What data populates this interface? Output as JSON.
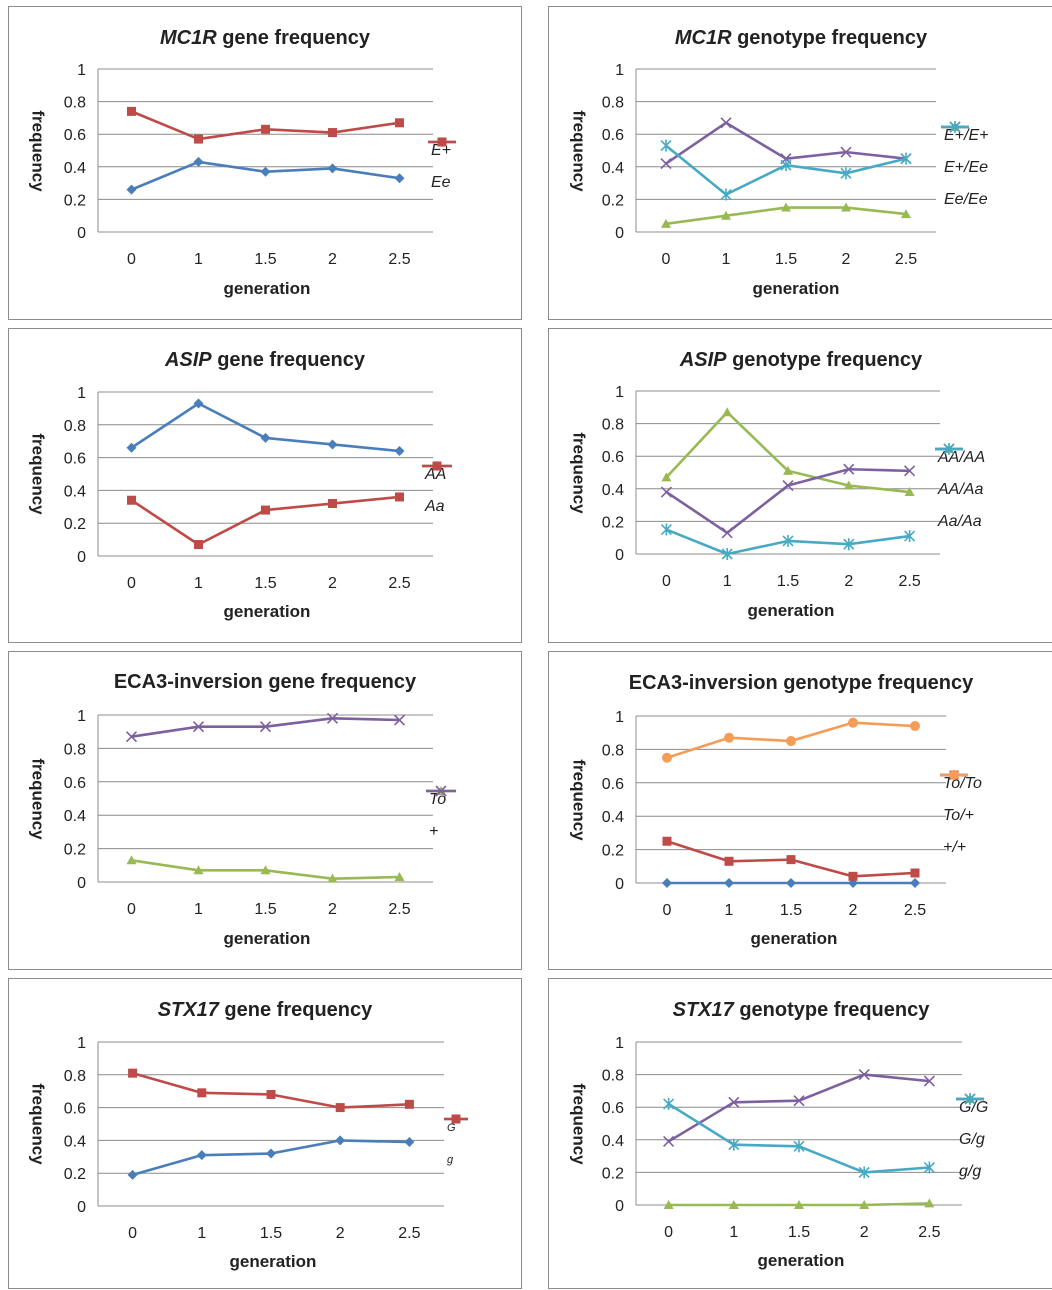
{
  "chart_data": [
    {
      "type": "line",
      "title_italic": "MC1R",
      "title_rest": " gene frequency",
      "xlabel": "generation",
      "ylabel": "frequency",
      "ylim": [
        0,
        1
      ],
      "yticks": [
        "0",
        "0.2",
        "0.4",
        "0.6",
        "0.8",
        "1"
      ],
      "categories": [
        "0",
        "1",
        "1.5",
        "2",
        "2.5"
      ],
      "legend_position": "right",
      "series": [
        {
          "name": "E+",
          "color": "#4a7ebb",
          "marker": "diamond",
          "values": [
            0.26,
            0.43,
            0.37,
            0.39,
            0.33
          ]
        },
        {
          "name": "Ee",
          "color": "#be4b48",
          "marker": "square",
          "values": [
            0.74,
            0.57,
            0.63,
            0.61,
            0.67
          ]
        }
      ]
    },
    {
      "type": "line",
      "title_italic": "MC1R",
      "title_rest": " genotype frequency",
      "xlabel": "generation",
      "ylabel": "frequency",
      "ylim": [
        0,
        1
      ],
      "yticks": [
        "0",
        "0.2",
        "0.4",
        "0.6",
        "0.8",
        "1"
      ],
      "categories": [
        "0",
        "1",
        "1.5",
        "2",
        "2.5"
      ],
      "legend_position": "right",
      "series": [
        {
          "name": "E+/E+",
          "color": "#98b954",
          "marker": "triangle",
          "values": [
            0.05,
            0.1,
            0.15,
            0.15,
            0.11
          ]
        },
        {
          "name": "E+/Ee",
          "color": "#7d60a0",
          "marker": "x",
          "values": [
            0.42,
            0.67,
            0.45,
            0.49,
            0.45
          ]
        },
        {
          "name": "Ee/Ee",
          "color": "#46aac5",
          "marker": "star",
          "values": [
            0.53,
            0.23,
            0.41,
            0.36,
            0.45
          ]
        }
      ]
    },
    {
      "type": "line",
      "title_italic": "ASIP",
      "title_rest": " gene frequency",
      "xlabel": "generation",
      "ylabel": "frequency",
      "ylim": [
        0,
        1
      ],
      "yticks": [
        "0",
        "0.2",
        "0.4",
        "0.6",
        "0.8",
        "1"
      ],
      "categories": [
        "0",
        "1",
        "1.5",
        "2",
        "2.5"
      ],
      "legend_position": "right",
      "series": [
        {
          "name": "AA",
          "color": "#4a7ebb",
          "marker": "diamond",
          "values": [
            0.66,
            0.93,
            0.72,
            0.68,
            0.64
          ]
        },
        {
          "name": "Aa",
          "color": "#be4b48",
          "marker": "square",
          "values": [
            0.34,
            0.07,
            0.28,
            0.32,
            0.36
          ]
        }
      ]
    },
    {
      "type": "line",
      "title_italic": "ASIP",
      "title_rest": " genotype frequency",
      "xlabel": "generation",
      "ylabel": "frequency",
      "ylim": [
        0,
        1
      ],
      "yticks": [
        "0",
        "0.2",
        "0.4",
        "0.6",
        "0.8",
        "1"
      ],
      "categories": [
        "0",
        "1",
        "1.5",
        "2",
        "2.5"
      ],
      "legend_position": "right",
      "series": [
        {
          "name": "AA/AA",
          "color": "#98b954",
          "marker": "triangle",
          "values": [
            0.47,
            0.87,
            0.51,
            0.42,
            0.38
          ]
        },
        {
          "name": "AA/Aa",
          "color": "#7d60a0",
          "marker": "x",
          "values": [
            0.38,
            0.13,
            0.42,
            0.52,
            0.51
          ]
        },
        {
          "name": "Aa/Aa",
          "color": "#46aac5",
          "marker": "star",
          "values": [
            0.15,
            0.0,
            0.08,
            0.06,
            0.11
          ]
        }
      ]
    },
    {
      "type": "line",
      "title_italic": "",
      "title_rest": "ECA3-inversion gene frequency",
      "xlabel": "generation",
      "ylabel": "frequency",
      "ylim": [
        0,
        1
      ],
      "yticks": [
        "0",
        "0.2",
        "0.4",
        "0.6",
        "0.8",
        "1"
      ],
      "categories": [
        "0",
        "1",
        "1.5",
        "2",
        "2.5"
      ],
      "legend_position": "right",
      "series": [
        {
          "name": "To",
          "color": "#98b954",
          "marker": "triangle",
          "values": [
            0.13,
            0.07,
            0.07,
            0.02,
            0.03
          ]
        },
        {
          "name": "+",
          "color": "#7d60a0",
          "marker": "x",
          "values": [
            0.87,
            0.93,
            0.93,
            0.98,
            0.97
          ]
        }
      ]
    },
    {
      "type": "line",
      "title_italic": "",
      "title_rest": "ECA3-inversion genotype frequency",
      "xlabel": "generation",
      "ylabel": "frequency",
      "ylim": [
        0,
        1
      ],
      "yticks": [
        "0",
        "0.2",
        "0.4",
        "0.6",
        "0.8",
        "1"
      ],
      "categories": [
        "0",
        "1",
        "1.5",
        "2",
        "2.5"
      ],
      "legend_position": "right",
      "series": [
        {
          "name": "To/To",
          "color": "#4a7ebb",
          "marker": "diamond",
          "values": [
            0.0,
            0.0,
            0.0,
            0.0,
            0.0
          ]
        },
        {
          "name": "To/+",
          "color": "#be4b48",
          "marker": "square",
          "values": [
            0.25,
            0.13,
            0.14,
            0.04,
            0.06
          ]
        },
        {
          "name": "+/+",
          "color": "#f59d56",
          "marker": "circle",
          "values": [
            0.75,
            0.87,
            0.85,
            0.96,
            0.94
          ]
        }
      ]
    },
    {
      "type": "line",
      "title_italic": "STX17",
      "title_rest": " gene frequency",
      "xlabel": "generation",
      "ylabel": "frequency",
      "ylim": [
        0,
        1
      ],
      "yticks": [
        "0",
        "0.2",
        "0.4",
        "0.6",
        "0.8",
        "1"
      ],
      "categories": [
        "0",
        "1",
        "1.5",
        "2",
        "2.5"
      ],
      "legend_position": "right",
      "series": [
        {
          "name": "G",
          "color": "#4a7ebb",
          "marker": "diamond",
          "values": [
            0.19,
            0.31,
            0.32,
            0.4,
            0.39
          ]
        },
        {
          "name": "g",
          "color": "#be4b48",
          "marker": "square",
          "values": [
            0.81,
            0.69,
            0.68,
            0.6,
            0.62
          ]
        }
      ]
    },
    {
      "type": "line",
      "title_italic": "STX17",
      "title_rest": " genotype frequency",
      "xlabel": "generation",
      "ylabel": "frequency",
      "ylim": [
        0,
        1
      ],
      "yticks": [
        "0",
        "0.2",
        "0.4",
        "0.6",
        "0.8",
        "1"
      ],
      "categories": [
        "0",
        "1",
        "1.5",
        "2",
        "2.5"
      ],
      "legend_position": "right",
      "series": [
        {
          "name": "G/G",
          "color": "#98b954",
          "marker": "triangle",
          "values": [
            0.0,
            0.0,
            0.0,
            0.0,
            0.01
          ]
        },
        {
          "name": "G/g",
          "color": "#7d60a0",
          "marker": "x",
          "values": [
            0.39,
            0.63,
            0.64,
            0.8,
            0.76
          ]
        },
        {
          "name": "g/g",
          "color": "#46aac5",
          "marker": "star",
          "values": [
            0.62,
            0.37,
            0.36,
            0.2,
            0.23
          ]
        }
      ]
    }
  ]
}
